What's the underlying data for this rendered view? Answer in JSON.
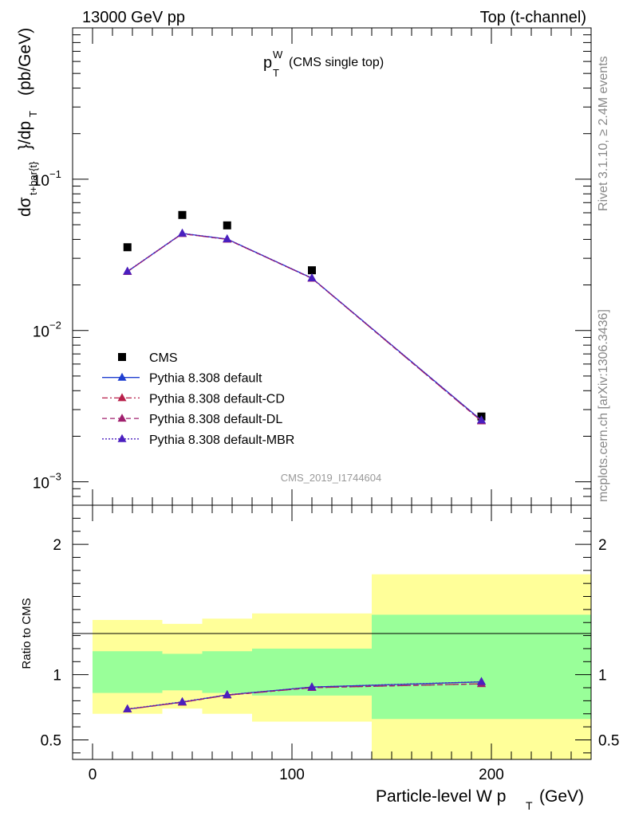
{
  "header": {
    "left": "13000 GeV pp",
    "right": "Top (t-channel)"
  },
  "side_labels": {
    "rivet": "Rivet 3.1.10, ≥ 2.4M events",
    "mcplots": "mcplots.cern.ch [arXiv:1306.3436]"
  },
  "chart_data": [
    {
      "type": "line",
      "title": "pTW (CMS single top)",
      "title_main": "p",
      "title_sub": "T",
      "title_sup": "W",
      "title_rest": "(CMS single top)",
      "ylabel": "dσt+bar{t}/dpT (pb/GeV)",
      "ylabel_parts": {
        "d_sigma": "dσ",
        "sigma_sub": "t+bar{t}",
        "mid": "}/dp",
        "pt_sub": "T",
        "unit": "(pb/GeV)"
      },
      "yscale": "log",
      "ylim": [
        0.0007,
        1.0
      ],
      "xlim": [
        -10,
        250
      ],
      "y_tick_labels": [
        {
          "base": "10",
          "exp": "−1",
          "value": 0.1
        },
        {
          "base": "10",
          "exp": "−2",
          "value": 0.01
        },
        {
          "base": "10",
          "exp": "−3",
          "value": 0.001
        }
      ],
      "watermark": "CMS_2019_I1744604",
      "legend_position": "lower-left",
      "series": [
        {
          "name": "CMS",
          "style": "data",
          "color": "#000000",
          "points": [
            [
              17.5,
              0.0355
            ],
            [
              45,
              0.058
            ],
            [
              67.5,
              0.0495
            ],
            [
              110,
              0.025
            ],
            [
              195,
              0.0027
            ]
          ]
        },
        {
          "name": "Pythia 8.308 default",
          "style": "solid",
          "color": "#1f3fd0",
          "points": [
            [
              17.5,
              0.0245
            ],
            [
              45,
              0.0438
            ],
            [
              67.5,
              0.0402
            ],
            [
              110,
              0.0222
            ],
            [
              195,
              0.00255
            ]
          ]
        },
        {
          "name": "Pythia 8.308 default-CD",
          "style": "dashdot",
          "color": "#b8204a",
          "points": [
            [
              17.5,
              0.0245
            ],
            [
              45,
              0.0436
            ],
            [
              67.5,
              0.04
            ],
            [
              110,
              0.0221
            ],
            [
              195,
              0.00252
            ]
          ]
        },
        {
          "name": "Pythia 8.308 default-DL",
          "style": "dashed",
          "color": "#a0206e",
          "points": [
            [
              17.5,
              0.0245
            ],
            [
              45,
              0.0436
            ],
            [
              67.5,
              0.04
            ],
            [
              110,
              0.0221
            ],
            [
              195,
              0.00252
            ]
          ]
        },
        {
          "name": "Pythia 8.308 default-MBR",
          "style": "dotted",
          "color": "#4a1fbf",
          "points": [
            [
              17.5,
              0.0246
            ],
            [
              45,
              0.0438
            ],
            [
              67.5,
              0.0402
            ],
            [
              110,
              0.0222
            ],
            [
              195,
              0.00255
            ]
          ]
        }
      ]
    },
    {
      "type": "line",
      "ylabel": "Ratio to CMS",
      "xlabel": "Particle-level W pT (GeV)",
      "xlabel_parts": {
        "main": "Particle-level W p",
        "sub": "T",
        "unit": "(GeV)"
      },
      "ylim": [
        0.35,
        2.3
      ],
      "xlim": [
        -10,
        250
      ],
      "y_ticks": [
        0.5,
        1,
        2
      ],
      "y_tick_labels": [
        "0.5",
        "1",
        "2"
      ],
      "x_ticks": [
        0,
        100,
        200
      ],
      "x_tick_labels": [
        "0",
        "100",
        "200"
      ],
      "bands": [
        {
          "x0": 0,
          "x1": 35,
          "green": [
            0.86,
            1.18
          ],
          "yellow": [
            0.7,
            1.42
          ]
        },
        {
          "x0": 35,
          "x1": 55,
          "green": [
            0.88,
            1.16
          ],
          "yellow": [
            0.74,
            1.39
          ]
        },
        {
          "x0": 55,
          "x1": 80,
          "green": [
            0.86,
            1.18
          ],
          "yellow": [
            0.7,
            1.43
          ]
        },
        {
          "x0": 80,
          "x1": 140,
          "green": [
            0.84,
            1.2
          ],
          "yellow": [
            0.64,
            1.47
          ]
        },
        {
          "x0": 140,
          "x1": 250,
          "green": [
            0.66,
            1.46
          ],
          "yellow": [
            0.3,
            1.77
          ]
        }
      ],
      "series": [
        {
          "name": "Pythia 8.308 default",
          "color": "#1f3fd0",
          "style": "solid",
          "points": [
            [
              17.5,
              0.735
            ],
            [
              45,
              0.79
            ],
            [
              67.5,
              0.845
            ],
            [
              110,
              0.905
            ],
            [
              195,
              0.945
            ]
          ]
        },
        {
          "name": "Pythia 8.308 default-CD",
          "color": "#b8204a",
          "style": "dashdot",
          "points": [
            [
              17.5,
              0.735
            ],
            [
              45,
              0.788
            ],
            [
              67.5,
              0.843
            ],
            [
              110,
              0.9
            ],
            [
              195,
              0.93
            ]
          ]
        },
        {
          "name": "Pythia 8.308 default-DL",
          "color": "#a0206e",
          "style": "dashed",
          "points": [
            [
              17.5,
              0.735
            ],
            [
              45,
              0.788
            ],
            [
              67.5,
              0.843
            ],
            [
              110,
              0.9
            ],
            [
              195,
              0.93
            ]
          ]
        },
        {
          "name": "Pythia 8.308 default-MBR",
          "color": "#4a1fbf",
          "style": "dotted",
          "points": [
            [
              17.5,
              0.737
            ],
            [
              45,
              0.792
            ],
            [
              67.5,
              0.846
            ],
            [
              110,
              0.905
            ],
            [
              195,
              0.946
            ]
          ]
        }
      ]
    }
  ]
}
